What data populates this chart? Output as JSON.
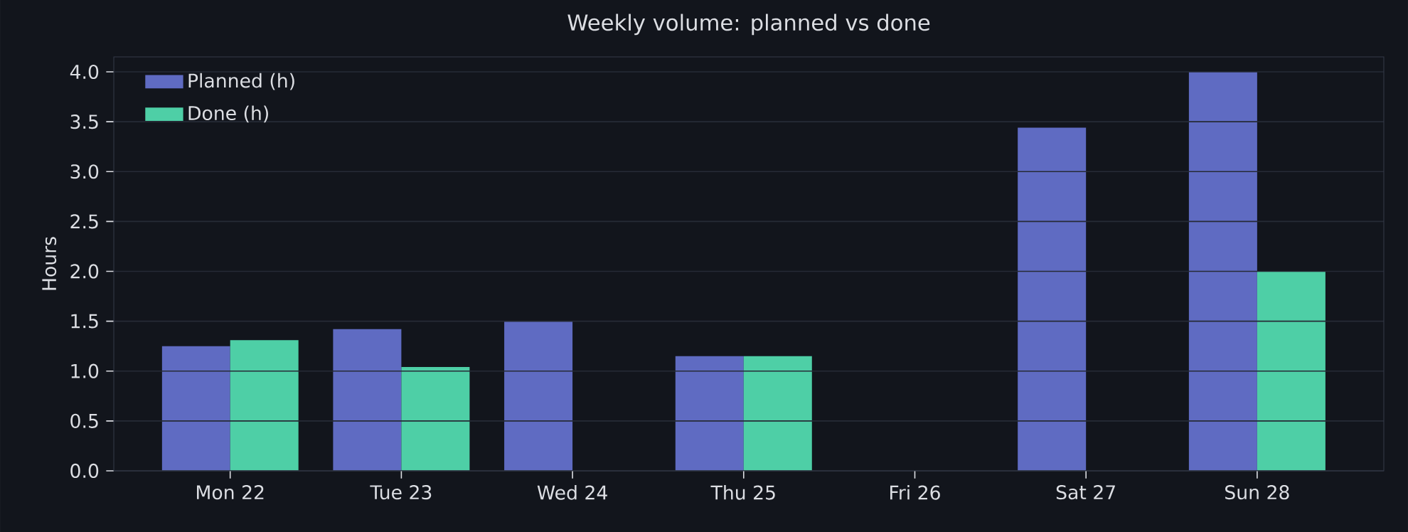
{
  "chart_data": {
    "type": "bar",
    "title": "Weekly volume: planned vs done",
    "ylabel": "Hours",
    "categories": [
      "Mon 22",
      "Tue 23",
      "Wed 24",
      "Thu 25",
      "Fri 26",
      "Sat 27",
      "Sun 28"
    ],
    "series": [
      {
        "name": "Planned (h)",
        "color": "#5f6bc2",
        "values": [
          1.25,
          1.42,
          1.5,
          1.15,
          0,
          3.44,
          4.0
        ]
      },
      {
        "name": "Done (h)",
        "color": "#4ecfa6",
        "values": [
          1.31,
          1.04,
          0,
          1.15,
          0,
          0,
          2.0
        ]
      }
    ],
    "ylim": [
      0,
      4.15
    ],
    "yticks": [
      {
        "value": 0,
        "label": "0.0"
      },
      {
        "value": 0.5,
        "label": "0.5"
      },
      {
        "value": 1,
        "label": "1.0"
      },
      {
        "value": 1.5,
        "label": "1.5"
      },
      {
        "value": 2,
        "label": "2.0"
      },
      {
        "value": 2.5,
        "label": "2.5"
      },
      {
        "value": 3,
        "label": "3.0"
      },
      {
        "value": 3.5,
        "label": "3.5"
      },
      {
        "value": 4,
        "label": "4.0"
      }
    ],
    "grid": "y",
    "legend": "top left"
  }
}
